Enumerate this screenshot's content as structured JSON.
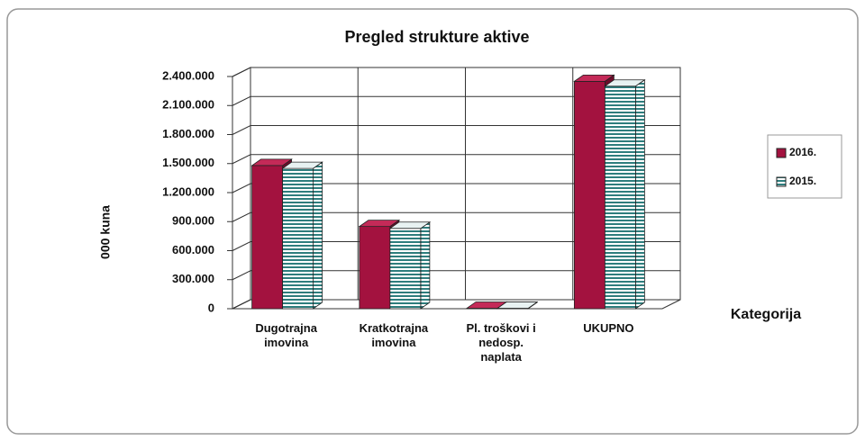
{
  "chart_data": {
    "type": "bar3d",
    "title": "Pregled strukture aktive",
    "y_label": "000 kuna",
    "x_label": "Kategorija",
    "categories": [
      "Dugotrajna imovina",
      "Kratkotrajna imovina",
      "Pl. troškovi i nedosp. naplata",
      "UKUPNO"
    ],
    "series": [
      {
        "name": "2016.",
        "color": "#a3123f",
        "values": [
          1480000,
          850000,
          5000,
          2350000
        ]
      },
      {
        "name": "2015.",
        "color": "#2e7d7d",
        "values": [
          1450000,
          830000,
          4000,
          2300000
        ]
      }
    ],
    "ylim": [
      0,
      2400000
    ],
    "yticks": [
      0,
      {
        "value": 300000,
        "label": "300.000"
      },
      {
        "value": 600000,
        "label": "600.000"
      },
      {
        "value": 900000,
        "label": "900.000"
      },
      {
        "value": 1200000,
        "label": "1.200.000"
      },
      {
        "value": 1500000,
        "label": "1.500.000"
      },
      {
        "value": 1800000,
        "label": "1.800.000"
      },
      {
        "value": 2100000,
        "label": "2.100.000"
      },
      {
        "value": 2400000,
        "label": "2.400.000"
      }
    ],
    "grid": true,
    "legend": "right"
  }
}
